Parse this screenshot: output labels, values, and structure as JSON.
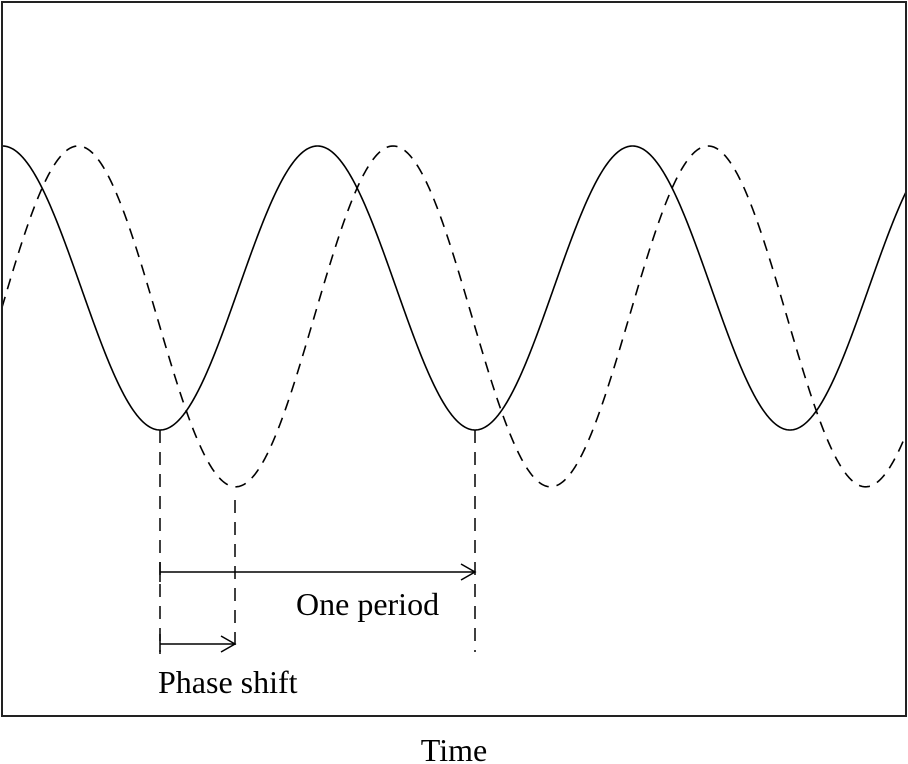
{
  "diagram": {
    "x_axis_label": "Time",
    "phase_shift_label": "Phase shift",
    "period_label": "One period",
    "colors": {
      "line": "#000000",
      "frame": "#222222",
      "background": "#ffffff"
    },
    "waves": [
      {
        "name": "",
        "style": "solid",
        "amplitude": 1.0,
        "offset": 0.0,
        "phase_shift_fraction": 0.0
      },
      {
        "name": "",
        "style": "dashed",
        "amplitude": 1.2,
        "offset": 0.2,
        "phase_shift_fraction": 0.24
      }
    ]
  }
}
